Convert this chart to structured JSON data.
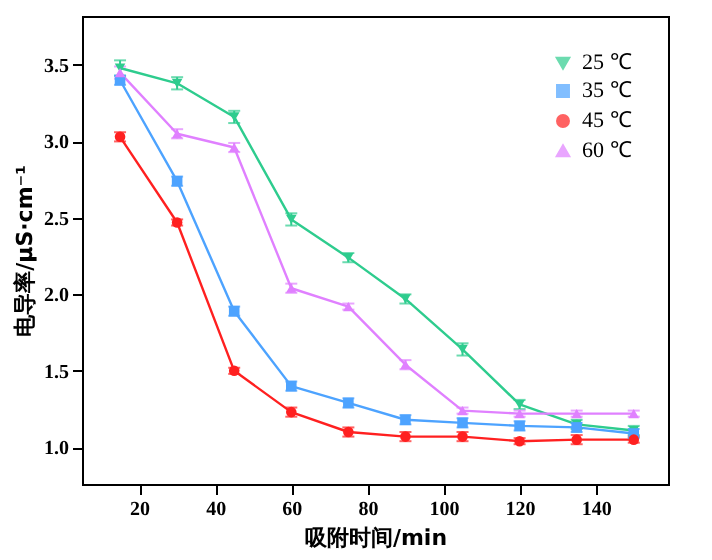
{
  "chart_data": {
    "type": "line",
    "xlabel": "吸附时间/min",
    "ylabel": "电导率/μS·cm⁻¹",
    "x": [
      15,
      30,
      45,
      60,
      75,
      90,
      105,
      120,
      135,
      150
    ],
    "xlim": [
      5,
      159
    ],
    "xticks": [
      20,
      40,
      60,
      80,
      100,
      120,
      140
    ],
    "ylim": [
      0.76,
      3.82
    ],
    "yticks": [
      {
        "value": 1.0,
        "label": "1.0"
      },
      {
        "value": 1.5,
        "label": "1.5"
      },
      {
        "value": 2.0,
        "label": "2.0"
      },
      {
        "value": 2.5,
        "label": "2.5"
      },
      {
        "value": 3.0,
        "label": "3.0"
      },
      {
        "value": 3.5,
        "label": "3.5"
      }
    ],
    "grid": false,
    "legend": "top right",
    "line_style": "solid",
    "series": [
      {
        "name": "25 ℃",
        "color": "#2ecc8e",
        "marker": "triangle-down",
        "values": [
          3.48,
          3.38,
          3.16,
          2.49,
          2.24,
          1.97,
          1.64,
          1.28,
          1.15,
          1.11
        ],
        "errors": [
          0.05,
          0.04,
          0.04,
          0.04,
          0.03,
          0.03,
          0.04,
          0.03,
          0.03,
          0.03
        ]
      },
      {
        "name": "35 ℃",
        "color": "#4da3ff",
        "marker": "square",
        "values": [
          3.4,
          2.74,
          1.89,
          1.4,
          1.29,
          1.18,
          1.16,
          1.14,
          1.13,
          1.09
        ],
        "errors": [
          0.03,
          0.03,
          0.03,
          0.03,
          0.03,
          0.03,
          0.03,
          0.03,
          0.03,
          0.03
        ]
      },
      {
        "name": "45 ℃",
        "color": "#ff2020",
        "marker": "circle",
        "values": [
          3.03,
          2.47,
          1.5,
          1.23,
          1.1,
          1.07,
          1.07,
          1.04,
          1.05,
          1.05
        ],
        "errors": [
          0.03,
          0.02,
          0.02,
          0.03,
          0.03,
          0.03,
          0.03,
          0.02,
          0.03,
          0.02
        ]
      },
      {
        "name": "60 ℃",
        "color": "#e080ff",
        "marker": "triangle-up",
        "values": [
          3.45,
          3.05,
          2.96,
          2.04,
          1.92,
          1.54,
          1.24,
          1.22,
          1.22,
          1.22
        ],
        "errors": [
          0.04,
          0.03,
          0.03,
          0.03,
          0.02,
          0.03,
          0.02,
          0.02,
          0.02,
          0.02
        ]
      }
    ]
  }
}
